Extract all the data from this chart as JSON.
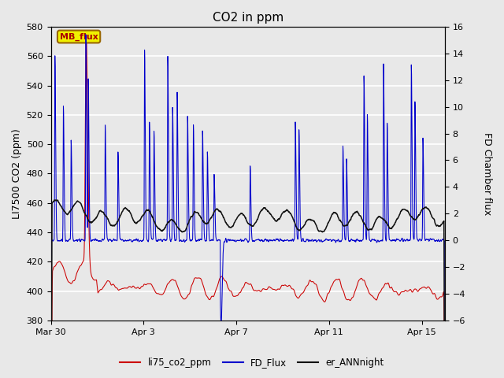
{
  "title": "CO2 in ppm",
  "ylabel_left": "LI7500 CO2 (ppm)",
  "ylabel_right": "FD Chamber flux",
  "ylim_left": [
    380,
    580
  ],
  "ylim_right": [
    -6,
    16
  ],
  "yticks_left": [
    380,
    400,
    420,
    440,
    460,
    480,
    500,
    520,
    540,
    560,
    580
  ],
  "yticks_right": [
    -6,
    -4,
    -2,
    0,
    2,
    4,
    6,
    8,
    10,
    12,
    14,
    16
  ],
  "bg_color": "#e8e8e8",
  "grid_color": "#ffffff",
  "line_red": "#cc0000",
  "line_blue": "#0000cc",
  "line_black": "#111111",
  "legend_labels": [
    "li75_co2_ppm",
    "FD_Flux",
    "er_ANNnight"
  ],
  "annotation_text": "MB_flux",
  "xtick_positions": [
    0,
    4,
    8,
    12,
    16
  ],
  "xtick_labels": [
    "Mar 30",
    "Apr 3",
    "Apr 7",
    "Apr 11",
    "Apr 15"
  ],
  "xlim": [
    0,
    17
  ],
  "n_days": 17
}
